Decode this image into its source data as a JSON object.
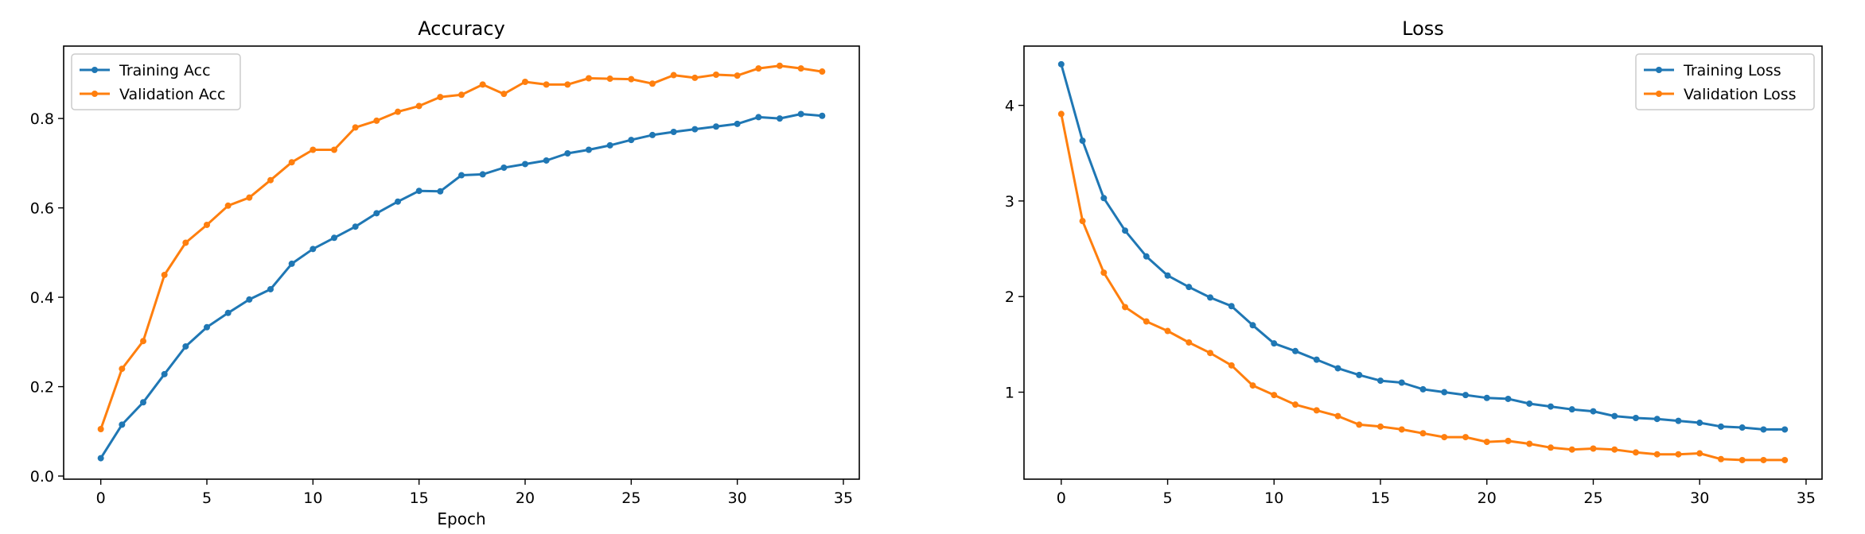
{
  "colors": {
    "training": "#1f77b4",
    "validation": "#ff7f0e",
    "axes": "#000000",
    "background": "#ffffff"
  },
  "chart_data": [
    {
      "type": "line",
      "title": "Accuracy",
      "xlabel": "Epoch",
      "ylabel": "",
      "xlim": [
        -1.75,
        35.75
      ],
      "ylim": [
        -0.007,
        0.962
      ],
      "xticks": [
        0,
        5,
        10,
        15,
        20,
        25,
        30,
        35
      ],
      "yticks": [
        0.0,
        0.2,
        0.4,
        0.6,
        0.8
      ],
      "ytick_labels": [
        "0.0",
        "0.2",
        "0.4",
        "0.6",
        "0.8"
      ],
      "grid": false,
      "legend_position": "upper-left",
      "x": [
        0,
        1,
        2,
        3,
        4,
        5,
        6,
        7,
        8,
        9,
        10,
        11,
        12,
        13,
        14,
        15,
        16,
        17,
        18,
        19,
        20,
        21,
        22,
        23,
        24,
        25,
        26,
        27,
        28,
        29,
        30,
        31,
        32,
        33,
        34
      ],
      "series": [
        {
          "name": "Training Acc",
          "color": "#1f77b4",
          "values": [
            0.04,
            0.115,
            0.165,
            0.228,
            0.29,
            0.333,
            0.365,
            0.395,
            0.418,
            0.475,
            0.508,
            0.533,
            0.558,
            0.588,
            0.614,
            0.638,
            0.637,
            0.673,
            0.675,
            0.69,
            0.698,
            0.706,
            0.722,
            0.73,
            0.74,
            0.752,
            0.763,
            0.77,
            0.776,
            0.782,
            0.788,
            0.803,
            0.8,
            0.81,
            0.806
          ]
        },
        {
          "name": "Validation Acc",
          "color": "#ff7f0e",
          "values": [
            0.105,
            0.24,
            0.302,
            0.45,
            0.522,
            0.562,
            0.605,
            0.623,
            0.662,
            0.702,
            0.73,
            0.73,
            0.78,
            0.795,
            0.815,
            0.828,
            0.848,
            0.853,
            0.876,
            0.855,
            0.882,
            0.876,
            0.876,
            0.89,
            0.889,
            0.888,
            0.878,
            0.897,
            0.891,
            0.898,
            0.896,
            0.912,
            0.918,
            0.912,
            0.905
          ]
        }
      ]
    },
    {
      "type": "line",
      "title": "Loss",
      "xlabel": "",
      "ylabel": "",
      "xlim": [
        -1.75,
        35.75
      ],
      "ylim": [
        0.09,
        4.62
      ],
      "xticks": [
        0,
        5,
        10,
        15,
        20,
        25,
        30,
        35
      ],
      "yticks": [
        1,
        2,
        3,
        4
      ],
      "ytick_labels": [
        "1",
        "2",
        "3",
        "4"
      ],
      "grid": false,
      "legend_position": "upper-right",
      "x": [
        0,
        1,
        2,
        3,
        4,
        5,
        6,
        7,
        8,
        9,
        10,
        11,
        12,
        13,
        14,
        15,
        16,
        17,
        18,
        19,
        20,
        21,
        22,
        23,
        24,
        25,
        26,
        27,
        28,
        29,
        30,
        31,
        32,
        33,
        34
      ],
      "series": [
        {
          "name": "Training Loss",
          "color": "#1f77b4",
          "values": [
            4.43,
            3.63,
            3.03,
            2.69,
            2.42,
            2.22,
            2.1,
            1.99,
            1.9,
            1.7,
            1.51,
            1.43,
            1.34,
            1.25,
            1.18,
            1.12,
            1.1,
            1.03,
            1.0,
            0.97,
            0.94,
            0.93,
            0.88,
            0.85,
            0.82,
            0.8,
            0.75,
            0.73,
            0.72,
            0.7,
            0.68,
            0.64,
            0.63,
            0.61,
            0.61
          ]
        },
        {
          "name": "Validation Loss",
          "color": "#ff7f0e",
          "values": [
            3.91,
            2.79,
            2.25,
            1.89,
            1.74,
            1.64,
            1.52,
            1.41,
            1.28,
            1.07,
            0.97,
            0.87,
            0.81,
            0.75,
            0.66,
            0.64,
            0.61,
            0.57,
            0.53,
            0.53,
            0.48,
            0.49,
            0.46,
            0.42,
            0.4,
            0.41,
            0.4,
            0.37,
            0.35,
            0.35,
            0.36,
            0.3,
            0.29,
            0.29,
            0.29
          ]
        }
      ]
    }
  ]
}
